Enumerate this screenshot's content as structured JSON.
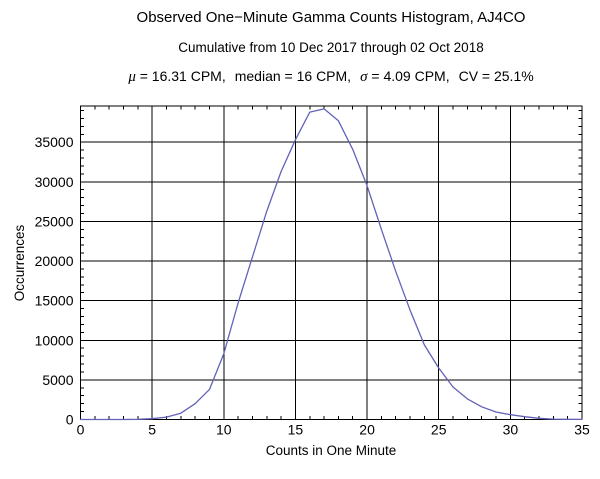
{
  "stats": {
    "mu_symbol": "μ",
    "mu_text": " = 16.31 CPM,",
    "median_text": "median = 16 CPM,",
    "sigma_symbol": "σ",
    "sigma_text": " = 4.09 CPM,",
    "cv_text": "CV = 25.1%"
  },
  "chart_data": {
    "type": "line",
    "title": "Observed One−Minute Gamma Counts Histogram, AJ4CO",
    "subtitle": "Cumulative from 10 Dec 2017 through 02 Oct 2018",
    "annotation": "μ = 16.31 CPM,  median = 16 CPM,  σ = 4.09 CPM,  CV = 25.1%",
    "xlabel": "Counts in One Minute",
    "ylabel": "Occurrences",
    "x": [
      0,
      1,
      2,
      3,
      4,
      5,
      6,
      7,
      8,
      9,
      10,
      11,
      12,
      13,
      14,
      15,
      16,
      17,
      18,
      19,
      20,
      21,
      22,
      23,
      24,
      25,
      26,
      27,
      28,
      29,
      30,
      31,
      32,
      33,
      34,
      35
    ],
    "values": [
      0,
      0,
      0,
      5,
      20,
      100,
      300,
      800,
      2000,
      3800,
      8300,
      14700,
      20500,
      26300,
      31300,
      35300,
      38800,
      39200,
      37700,
      34100,
      29500,
      24000,
      18700,
      13800,
      9400,
      6500,
      4100,
      2600,
      1600,
      950,
      600,
      350,
      150,
      50,
      20,
      10
    ],
    "xlim": [
      0,
      35
    ],
    "ylim": [
      0,
      39570
    ],
    "x_major_ticks": [
      0,
      5,
      10,
      15,
      20,
      25,
      30,
      35
    ],
    "y_major_ticks": [
      0,
      5000,
      10000,
      15000,
      20000,
      25000,
      30000,
      35000
    ],
    "x_minor_step": 1,
    "y_minor_step": 1000,
    "grid": true,
    "legend": "none",
    "line_color": "#6262b8",
    "grid_color": "#000000",
    "frame_color": "#000000"
  }
}
